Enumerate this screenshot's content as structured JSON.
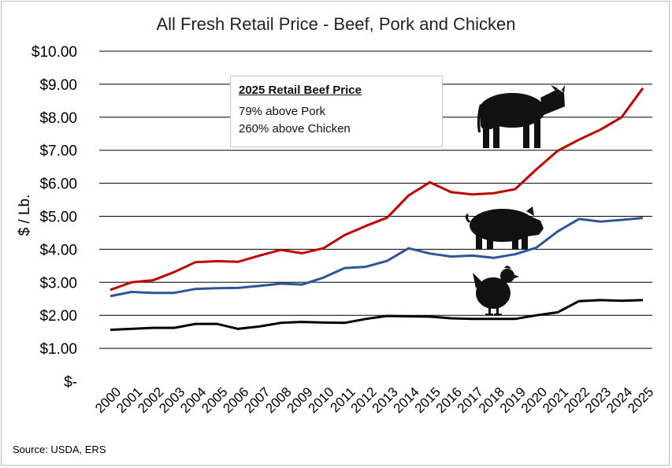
{
  "chart_data": {
    "type": "line",
    "title": "All Fresh Retail Price - Beef, Pork and Chicken",
    "xlabel": "",
    "ylabel": "$ / Lb.",
    "ylim": [
      0,
      10
    ],
    "y_ticks": [
      "$-",
      "$1.00",
      "$2.00",
      "$3.00",
      "$4.00",
      "$5.00",
      "$6.00",
      "$7.00",
      "$8.00",
      "$9.00",
      "$10.00"
    ],
    "grid": "horizontal",
    "x": [
      "2000",
      "2001",
      "2002",
      "2003",
      "2004",
      "2005",
      "2006",
      "2007",
      "2008",
      "2009",
      "2010",
      "2011",
      "2012",
      "2013",
      "2014",
      "2015",
      "2016",
      "2017",
      "2018",
      "2019",
      "2020",
      "2021",
      "2022",
      "2023",
      "2024",
      "2025"
    ],
    "series": [
      {
        "key": "beef",
        "color": "#c00000",
        "values": [
          2.77,
          3.0,
          3.06,
          3.31,
          3.61,
          3.64,
          3.62,
          3.81,
          3.98,
          3.88,
          4.03,
          4.43,
          4.71,
          4.96,
          5.63,
          6.03,
          5.73,
          5.66,
          5.7,
          5.82,
          6.42,
          6.98,
          7.32,
          7.62,
          8.0,
          8.88
        ]
      },
      {
        "key": "pork",
        "color": "#2e5597",
        "values": [
          2.58,
          2.71,
          2.68,
          2.68,
          2.8,
          2.82,
          2.83,
          2.89,
          2.96,
          2.93,
          3.14,
          3.43,
          3.47,
          3.65,
          4.03,
          3.87,
          3.78,
          3.81,
          3.74,
          3.85,
          4.05,
          4.54,
          4.92,
          4.84,
          4.89,
          4.95
        ]
      },
      {
        "key": "chicken",
        "color": "#000000",
        "values": [
          1.56,
          1.59,
          1.62,
          1.62,
          1.74,
          1.74,
          1.59,
          1.66,
          1.77,
          1.8,
          1.78,
          1.77,
          1.89,
          1.98,
          1.97,
          1.96,
          1.91,
          1.89,
          1.89,
          1.89,
          2.0,
          2.09,
          2.43,
          2.46,
          2.44,
          2.46
        ]
      }
    ],
    "annotation": {
      "heading": "2025 Retail Beef Price",
      "line1": "79% above Pork",
      "line2": "260% above Chicken"
    },
    "icons": [
      "cow-icon",
      "pig-icon",
      "chicken-icon"
    ],
    "source": "Source: USDA, ERS"
  }
}
